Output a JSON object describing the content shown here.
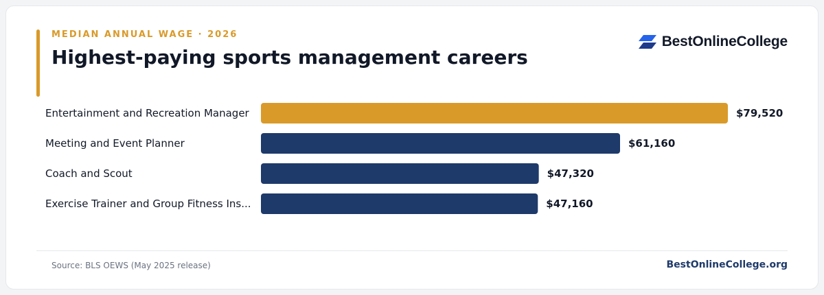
{
  "header": {
    "eyebrow": "MEDIAN ANNUAL WAGE · 2026",
    "title": "Highest-paying sports management careers"
  },
  "brand": {
    "logo_text": "BestOnlineCollege",
    "logo_icon": "stacked-parallelogram-icon",
    "site": "BestOnlineCollege.org"
  },
  "footer": {
    "source": "Source: BLS OEWS (May 2025 release)"
  },
  "colors": {
    "highlight": "#d99a29",
    "bar": "#1e3a6a",
    "logo_blue": "#2563eb",
    "logo_navy": "#1e3a8a"
  },
  "chart_data": {
    "type": "bar",
    "orientation": "horizontal",
    "categories": [
      "Entertainment and Recreation Manager",
      "Meeting and Event Planner",
      "Coach and Scout",
      "Exercise Trainer and Group Fitness Ins..."
    ],
    "values": [
      79520,
      61160,
      47320,
      47160
    ],
    "value_labels": [
      "$79,520",
      "$61,160",
      "$47,320",
      "$47,160"
    ],
    "highlight_index": 0,
    "title": "Highest-paying sports management careers",
    "xlabel": "",
    "ylabel": "",
    "grid": false,
    "legend": "none"
  }
}
